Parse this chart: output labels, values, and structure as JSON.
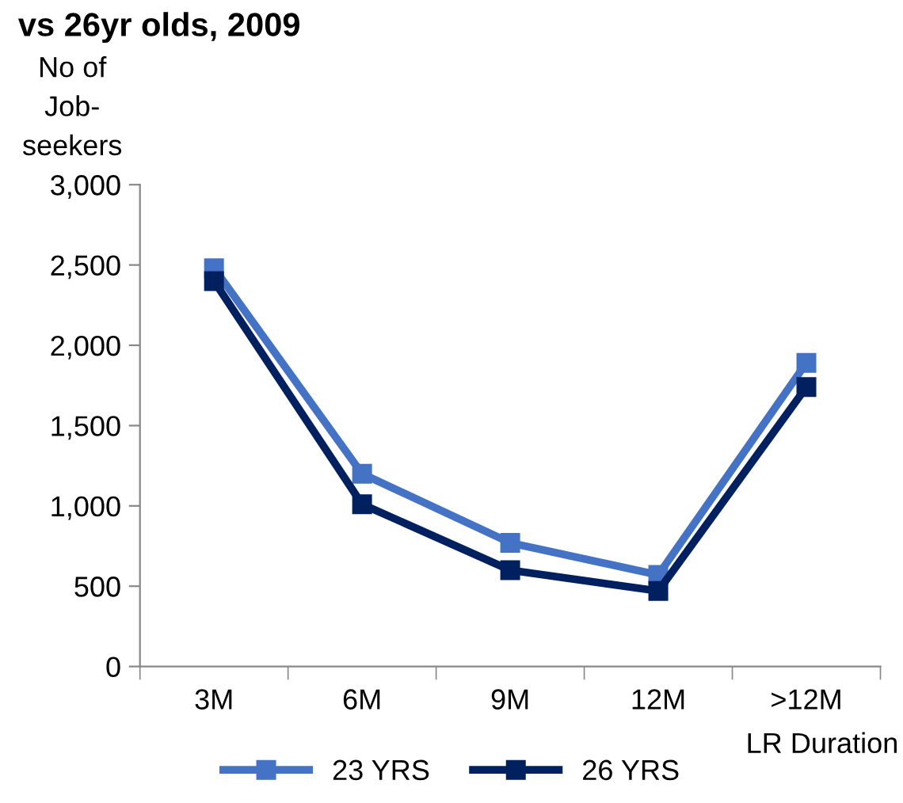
{
  "chart_data": {
    "type": "line",
    "title": "vs 26yr olds, 2009",
    "ylabel": "No of\nJob-\nseekers",
    "xlabel": "LR Duration",
    "categories": [
      "3M",
      "6M",
      "9M",
      "12M",
      ">12M"
    ],
    "series": [
      {
        "name": "23 YRS",
        "color": "#4472c4",
        "values": [
          2480,
          1200,
          770,
          570,
          1890
        ]
      },
      {
        "name": "26 YRS",
        "color": "#002060",
        "values": [
          2400,
          1010,
          600,
          470,
          1740
        ]
      }
    ],
    "ylim": [
      0,
      3000
    ],
    "yticks": [
      0,
      {
        "value": 500,
        "label": "500"
      },
      {
        "value": 1000,
        "label": "1,000"
      },
      {
        "value": 1500,
        "label": "1,500"
      },
      {
        "value": 2000,
        "label": "2,000"
      },
      {
        "value": 2500,
        "label": "2,500"
      },
      {
        "value": 3000,
        "label": "3,000"
      }
    ],
    "grid": false,
    "legend": "bottom",
    "marker": "square",
    "line_style": "solid"
  }
}
